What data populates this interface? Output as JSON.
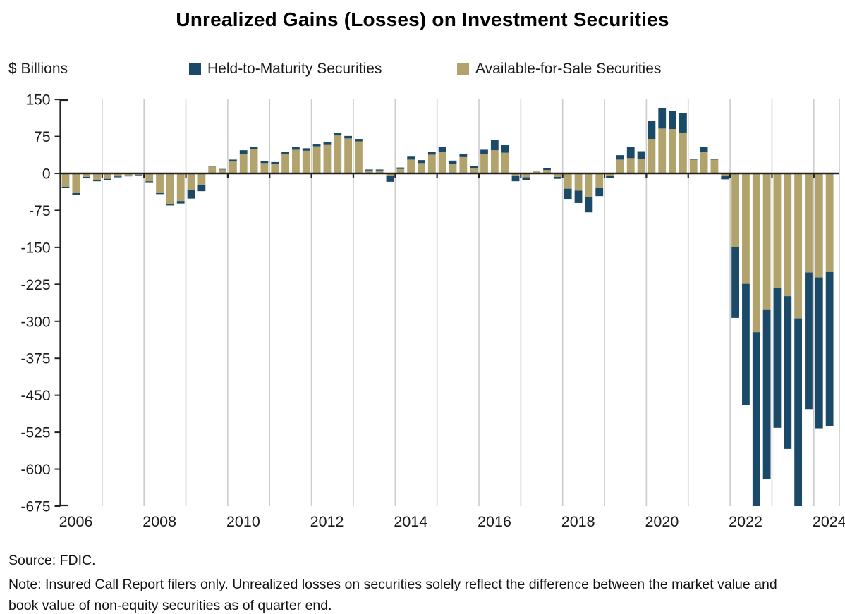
{
  "title": "Unrealized Gains (Losses) on Investment Securities",
  "y_axis_label": "$ Billions",
  "legend": [
    {
      "label": "Held-to-Maturity Securities",
      "color": "#1b4a68"
    },
    {
      "label": "Available-for-Sale Securities",
      "color": "#b2a26b"
    }
  ],
  "footer": {
    "source": "Source: FDIC.",
    "note": "Note: Insured Call Report filers only. Unrealized losses on securities solely reflect the difference between the market value and book value of non-equity securities as of quarter end."
  },
  "chart_data": {
    "type": "bar",
    "stacked": true,
    "title": "Unrealized Gains (Losses) on Investment Securities",
    "xlabel": "",
    "ylabel": "$ Billions",
    "ylim": [
      -675,
      150
    ],
    "ytick_step": 75,
    "y_ticks": [
      150,
      75,
      0,
      -75,
      -150,
      -225,
      -300,
      -375,
      -450,
      -525,
      -600,
      -675
    ],
    "x_tick_years": [
      2006,
      2008,
      2010,
      2012,
      2014,
      2016,
      2018,
      2020,
      2022,
      2024
    ],
    "grid": "vertical-yearly",
    "legend_position": "top",
    "categories": [
      "2006 Q1",
      "2006 Q2",
      "2006 Q3",
      "2006 Q4",
      "2007 Q1",
      "2007 Q2",
      "2007 Q3",
      "2007 Q4",
      "2008 Q1",
      "2008 Q2",
      "2008 Q3",
      "2008 Q4",
      "2009 Q1",
      "2009 Q2",
      "2009 Q3",
      "2009 Q4",
      "2010 Q1",
      "2010 Q2",
      "2010 Q3",
      "2010 Q4",
      "2011 Q1",
      "2011 Q2",
      "2011 Q3",
      "2011 Q4",
      "2012 Q1",
      "2012 Q2",
      "2012 Q3",
      "2012 Q4",
      "2013 Q1",
      "2013 Q2",
      "2013 Q3",
      "2013 Q4",
      "2014 Q1",
      "2014 Q2",
      "2014 Q3",
      "2014 Q4",
      "2015 Q1",
      "2015 Q2",
      "2015 Q3",
      "2015 Q4",
      "2016 Q1",
      "2016 Q2",
      "2016 Q3",
      "2016 Q4",
      "2017 Q1",
      "2017 Q2",
      "2017 Q3",
      "2017 Q4",
      "2018 Q1",
      "2018 Q2",
      "2018 Q3",
      "2018 Q4",
      "2019 Q1",
      "2019 Q2",
      "2019 Q3",
      "2019 Q4",
      "2020 Q1",
      "2020 Q2",
      "2020 Q3",
      "2020 Q4",
      "2021 Q1",
      "2021 Q2",
      "2021 Q3",
      "2021 Q4",
      "2022 Q1",
      "2022 Q2",
      "2022 Q3",
      "2022 Q4",
      "2023 Q1",
      "2023 Q2",
      "2023 Q3",
      "2023 Q4",
      "2024 Q1",
      "2024 Q2"
    ],
    "series": [
      {
        "name": "Available-for-Sale Securities",
        "color": "#b2a26b",
        "values": [
          -27,
          -40,
          -7,
          -14,
          -11,
          -6,
          -4,
          -3,
          -16,
          -40,
          -63,
          -56,
          -34,
          -24,
          14,
          8,
          24,
          40,
          50,
          21,
          20,
          40,
          48,
          46,
          55,
          59,
          77,
          71,
          65,
          6,
          6,
          -5,
          9,
          28,
          21,
          38,
          43,
          20,
          33,
          11,
          40,
          47,
          42,
          -5,
          -8,
          4,
          7,
          -7,
          -31,
          -35,
          -48,
          -30,
          -5,
          28,
          31,
          30,
          70,
          91,
          90,
          83,
          28,
          43,
          28,
          -4,
          -150,
          -224,
          -322,
          -277,
          -232,
          -249,
          -294,
          -201,
          -211,
          -200
        ]
      },
      {
        "name": "Held-to-Maturity Securities",
        "color": "#1b4a68",
        "values": [
          -3,
          -4,
          -3,
          -2,
          -2,
          -2,
          -2,
          -1,
          -2,
          -2,
          -2,
          -5,
          -17,
          -12,
          1,
          1,
          4,
          7,
          4,
          4,
          3,
          4,
          6,
          5,
          5,
          5,
          6,
          5,
          5,
          2,
          2,
          -12,
          3,
          6,
          6,
          6,
          11,
          6,
          7,
          4,
          8,
          21,
          16,
          -11,
          -5,
          0,
          4,
          -4,
          -22,
          -25,
          -31,
          -16,
          -4,
          9,
          22,
          15,
          36,
          42,
          36,
          39,
          1,
          11,
          2,
          -8,
          -143,
          -246,
          -368,
          -343,
          -284,
          -310,
          -390,
          -277,
          -306,
          -313
        ]
      }
    ],
    "colors": {
      "htm": "#1b4a68",
      "afs": "#b2a26b",
      "gridline": "#cccccc",
      "axis": "#222222",
      "text": "#1a1a1a"
    }
  }
}
